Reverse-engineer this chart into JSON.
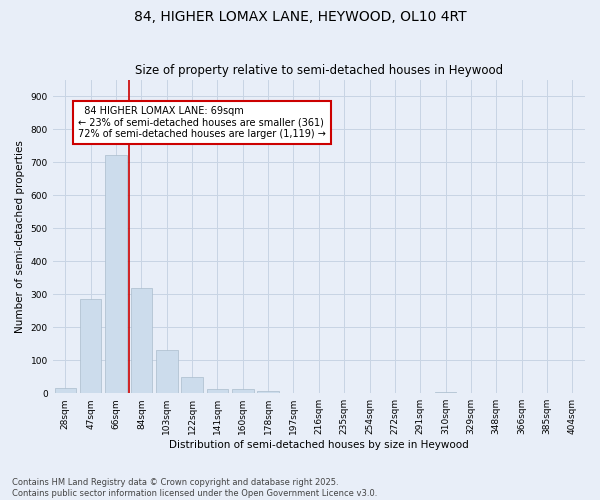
{
  "title": "84, HIGHER LOMAX LANE, HEYWOOD, OL10 4RT",
  "subtitle": "Size of property relative to semi-detached houses in Heywood",
  "xlabel": "Distribution of semi-detached houses by size in Heywood",
  "ylabel": "Number of semi-detached properties",
  "categories": [
    "28sqm",
    "47sqm",
    "66sqm",
    "84sqm",
    "103sqm",
    "122sqm",
    "141sqm",
    "160sqm",
    "178sqm",
    "197sqm",
    "216sqm",
    "235sqm",
    "254sqm",
    "272sqm",
    "291sqm",
    "310sqm",
    "329sqm",
    "348sqm",
    "366sqm",
    "385sqm",
    "404sqm"
  ],
  "values": [
    15,
    285,
    720,
    320,
    130,
    50,
    12,
    12,
    8,
    2,
    1,
    0,
    0,
    0,
    0,
    5,
    0,
    0,
    0,
    0,
    0
  ],
  "bar_color": "#ccdcec",
  "bar_edge_color": "#aabccc",
  "grid_color": "#c8d4e4",
  "bg_color": "#e8eef8",
  "annotation_box_color": "#cc0000",
  "property_line_color": "#cc0000",
  "property_size": 69,
  "property_label": "84 HIGHER LOMAX LANE: 69sqm",
  "pct_smaller": 23,
  "pct_larger": 72,
  "count_smaller": 361,
  "count_larger": 1119,
  "ylim": [
    0,
    950
  ],
  "yticks": [
    0,
    100,
    200,
    300,
    400,
    500,
    600,
    700,
    800,
    900
  ],
  "footer": "Contains HM Land Registry data © Crown copyright and database right 2025.\nContains public sector information licensed under the Open Government Licence v3.0.",
  "title_fontsize": 10,
  "subtitle_fontsize": 8.5,
  "axis_label_fontsize": 7.5,
  "tick_fontsize": 6.5,
  "annotation_fontsize": 7,
  "footer_fontsize": 6
}
